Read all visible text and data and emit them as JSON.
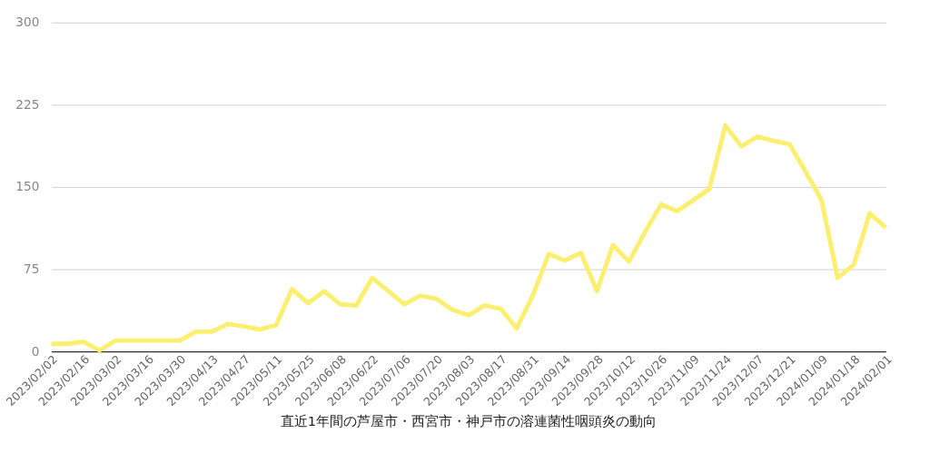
{
  "chart_data": {
    "type": "line",
    "title": "直近1年間の芦屋市・西宮市・神戸市の溶連菌性咽頭炎の動向",
    "categories": [
      "2023/02/02",
      null,
      "2023/02/16",
      null,
      "2023/03/02",
      null,
      "2023/03/16",
      null,
      "2023/03/30",
      null,
      "2023/04/13",
      null,
      "2023/04/27",
      null,
      "2023/05/11",
      null,
      "2023/05/25",
      null,
      "2023/06/08",
      null,
      "2023/06/22",
      null,
      "2023/07/06",
      null,
      "2023/07/20",
      null,
      "2023/08/03",
      null,
      "2023/08/17",
      null,
      "2023/08/31",
      null,
      "2023/09/14",
      null,
      "2023/09/28",
      null,
      "2023/10/12",
      null,
      "2023/10/26",
      null,
      "2023/11/09",
      null,
      "2023/11/24",
      null,
      "2023/12/07",
      null,
      "2023/12/21",
      null,
      "2024/01/09",
      null,
      "2024/01/18",
      null,
      "2024/02/01"
    ],
    "series": [
      {
        "color": "#fcef6f",
        "values": [
          7,
          7,
          9,
          1,
          10,
          10,
          10,
          10,
          10,
          18,
          18,
          25,
          23,
          20,
          24,
          57,
          44,
          55,
          43,
          42,
          67,
          55,
          43,
          51,
          48,
          38,
          33,
          42,
          39,
          21,
          51,
          89,
          83,
          90,
          55,
          97,
          82,
          109,
          134,
          128,
          138,
          148,
          206,
          187,
          196,
          192,
          189,
          164,
          138,
          67,
          79,
          126,
          113
        ]
      }
    ],
    "ylim": [
      0,
      300
    ],
    "yticks": [
      0,
      75,
      150,
      225,
      300
    ],
    "grid": "y",
    "legend": false,
    "marker": "none",
    "line_style": "solid"
  }
}
